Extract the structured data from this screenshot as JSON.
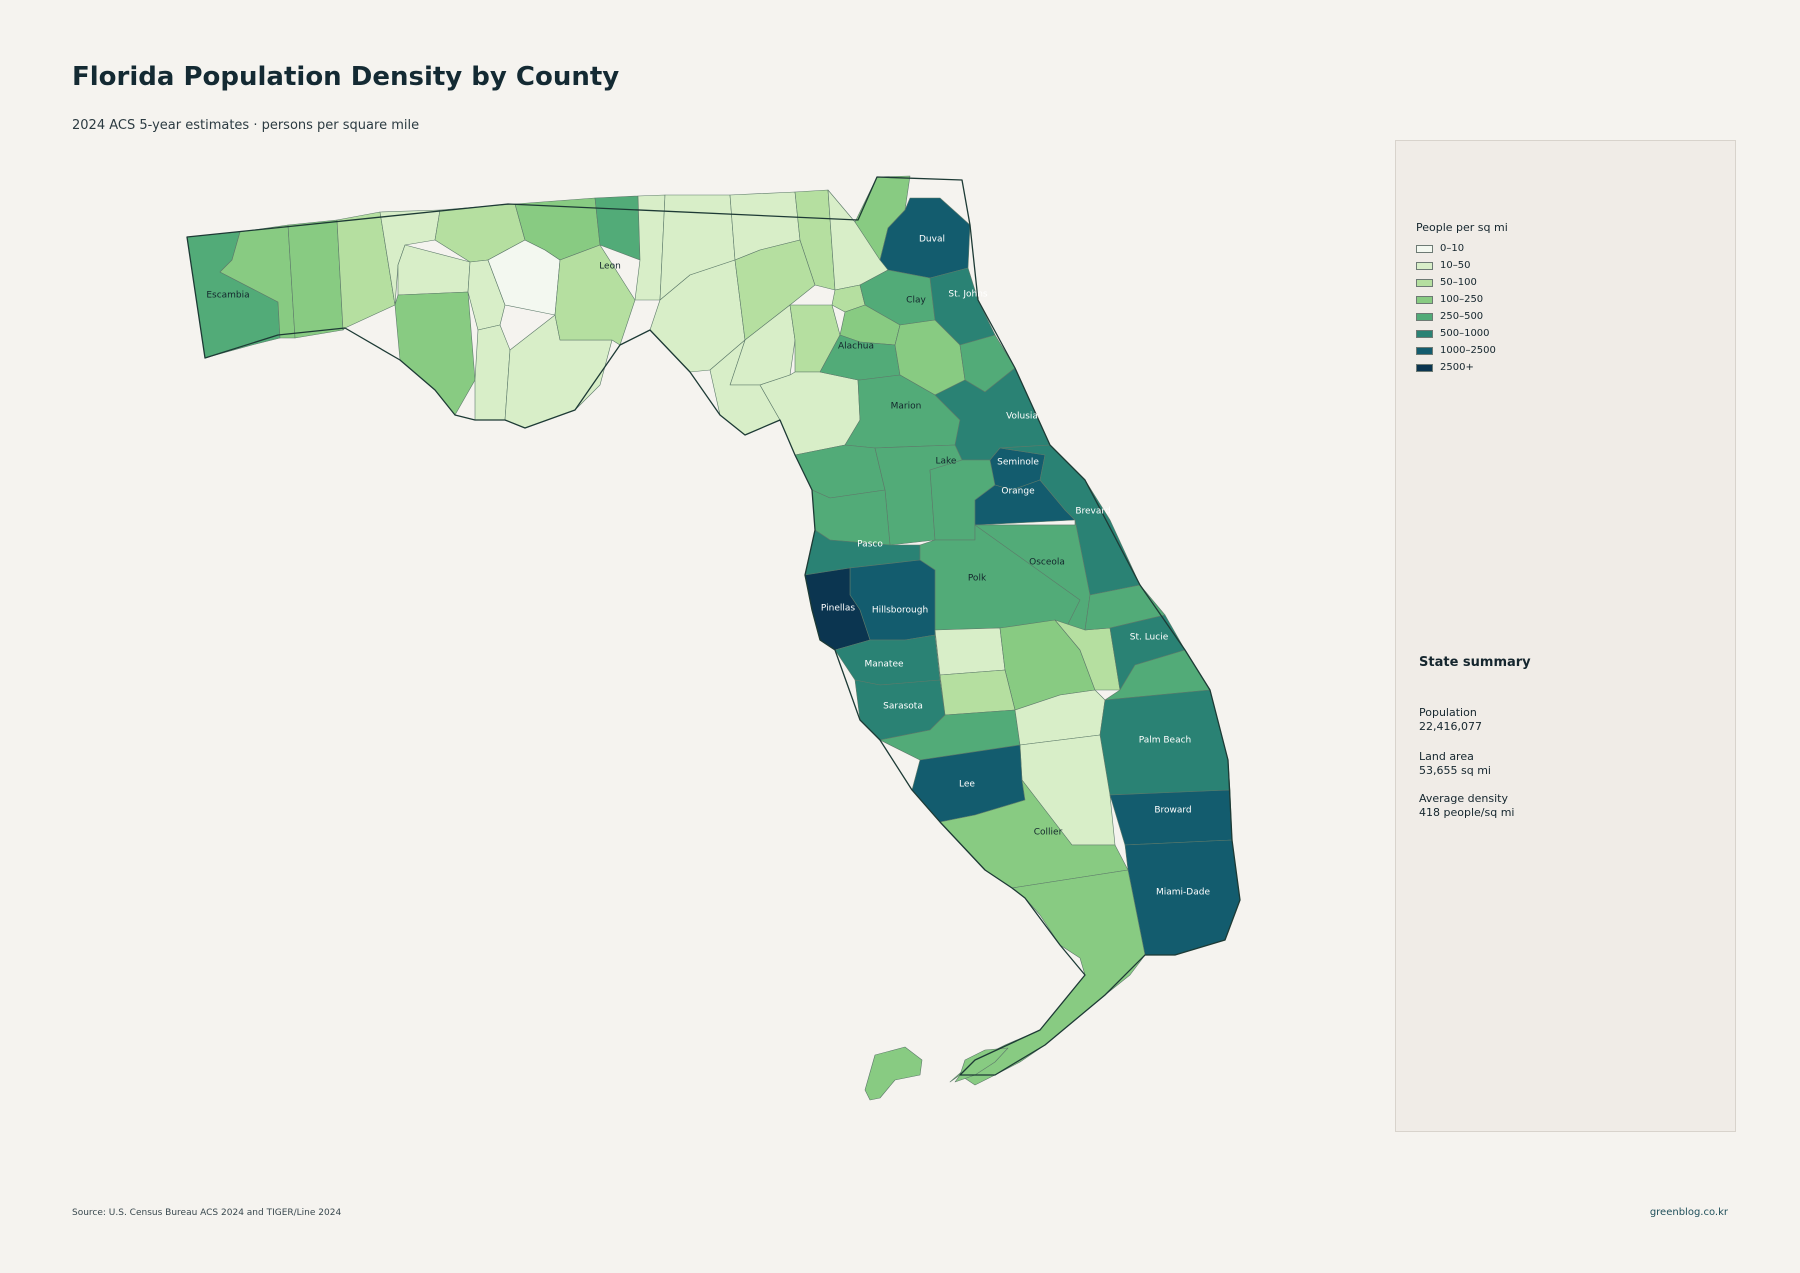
{
  "header": {
    "title": "Florida Population Density by County",
    "subtitle": "2024 ACS 5-year estimates · persons per square mile"
  },
  "legend": {
    "title": "People per sq mi",
    "classes": [
      {
        "label": "0–10",
        "color": "#f3f8f0"
      },
      {
        "label": "10–50",
        "color": "#d8eec8"
      },
      {
        "label": "50–100",
        "color": "#b5dfa0"
      },
      {
        "label": "100–250",
        "color": "#88cb82"
      },
      {
        "label": "250–500",
        "color": "#52ab78"
      },
      {
        "label": "500–1000",
        "color": "#2a8274"
      },
      {
        "label": "1000–2500",
        "color": "#135c6e"
      },
      {
        "label": "2500+",
        "color": "#0b3550"
      }
    ]
  },
  "summary": {
    "title": "State summary",
    "stats": [
      {
        "label": "Population",
        "value": "22,416,077"
      },
      {
        "label": "Land area",
        "value": "53,655 sq mi"
      },
      {
        "label": "Average density",
        "value": "418 people/sq mi"
      }
    ]
  },
  "counties": [
    {
      "name": "Escambia",
      "class": 4
    },
    {
      "name": "Leon",
      "class": 4
    },
    {
      "name": "Duval",
      "class": 6
    },
    {
      "name": "Clay",
      "class": 4
    },
    {
      "name": "St. Johns",
      "class": 5
    },
    {
      "name": "Alachua",
      "class": 4
    },
    {
      "name": "Marion",
      "class": 4
    },
    {
      "name": "Volusia",
      "class": 5
    },
    {
      "name": "Lake",
      "class": 4
    },
    {
      "name": "Seminole",
      "class": 6
    },
    {
      "name": "Orange",
      "class": 6
    },
    {
      "name": "Brevard",
      "class": 5
    },
    {
      "name": "Osceola",
      "class": 4
    },
    {
      "name": "Pasco",
      "class": 5
    },
    {
      "name": "Polk",
      "class": 4
    },
    {
      "name": "Hillsborough",
      "class": 6
    },
    {
      "name": "Pinellas",
      "class": 7
    },
    {
      "name": "St. Lucie",
      "class": 5
    },
    {
      "name": "Manatee",
      "class": 5
    },
    {
      "name": "Sarasota",
      "class": 5
    },
    {
      "name": "Palm Beach",
      "class": 5
    },
    {
      "name": "Lee",
      "class": 6
    },
    {
      "name": "Broward",
      "class": 6
    },
    {
      "name": "Collier",
      "class": 3
    },
    {
      "name": "Miami-Dade",
      "class": 6
    }
  ],
  "footer": {
    "source": "Source: U.S. Census Bureau ACS 2024 and TIGER/Line 2024",
    "credit": "greenblog.co.kr"
  }
}
